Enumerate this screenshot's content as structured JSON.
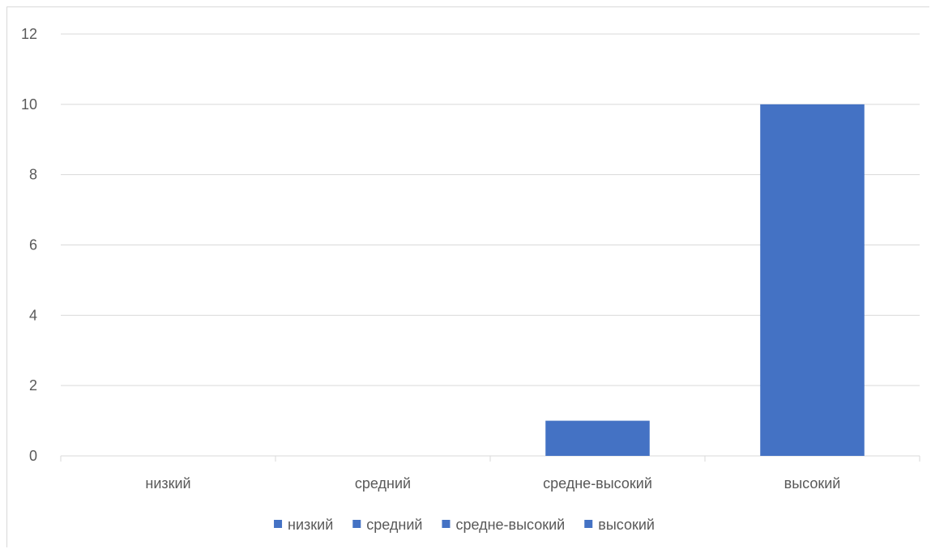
{
  "chart_data": {
    "type": "bar",
    "title": "",
    "xlabel": "",
    "ylabel": "",
    "categories": [
      "низкий",
      "средний",
      "средне-высокий",
      "высокий"
    ],
    "values": [
      0,
      0,
      1,
      10
    ],
    "ylim": [
      0,
      12
    ],
    "yticks": [
      0,
      2,
      4,
      6,
      8,
      10,
      12
    ],
    "grid": true,
    "legend": {
      "position": "bottom",
      "entries": [
        "низкий",
        "средний",
        "средне-высокий",
        "высокий"
      ]
    },
    "colors": {
      "bar": "#4472c4",
      "grid": "#d9d9d9",
      "text": "#595959"
    }
  }
}
